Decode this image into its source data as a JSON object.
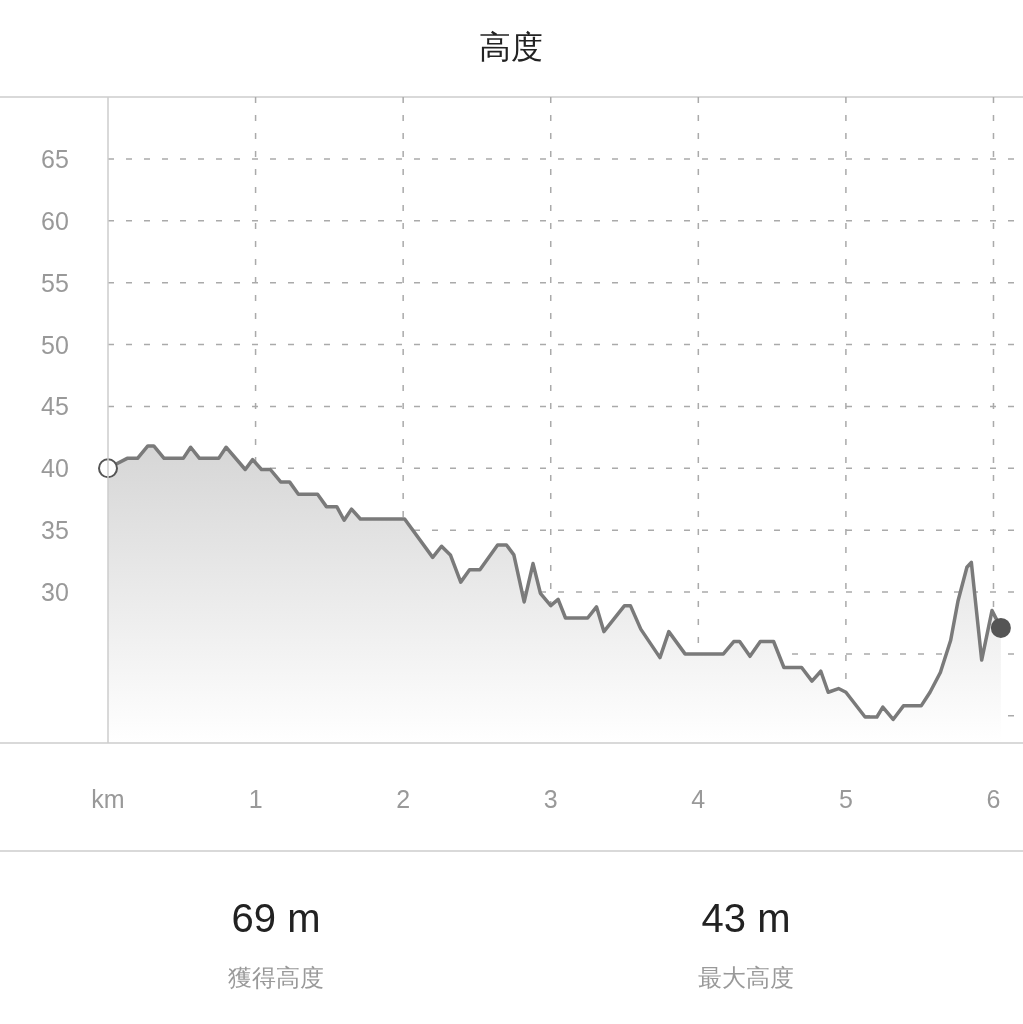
{
  "chart_data": {
    "type": "area",
    "title": "高度",
    "color": "#7a7a7a",
    "x": [
      0,
      0.13,
      0.2,
      0.27,
      0.31,
      0.38,
      0.51,
      0.56,
      0.62,
      0.75,
      0.8,
      0.93,
      0.98,
      1.04,
      1.1,
      1.17,
      1.23,
      1.29,
      1.42,
      1.48,
      1.55,
      1.6,
      1.65,
      1.71,
      2.01,
      2.2,
      2.26,
      2.32,
      2.39,
      2.45,
      2.52,
      2.64,
      2.7,
      2.75,
      2.82,
      2.88,
      2.93,
      3.0,
      3.05,
      3.1,
      3.25,
      3.31,
      3.36,
      3.5,
      3.54,
      3.61,
      3.74,
      3.8,
      3.91,
      4.17,
      4.24,
      4.28,
      4.35,
      4.42,
      4.51,
      4.58,
      4.7,
      4.77,
      4.83,
      4.88,
      4.95,
      5.0,
      5.13,
      5.21,
      5.25,
      5.32,
      5.39,
      5.51,
      5.57,
      5.64,
      5.71,
      5.76,
      5.82,
      5.85,
      5.92,
      5.99,
      6.05
    ],
    "values": [
      40,
      40.8,
      40.8,
      41.8,
      41.8,
      40.8,
      40.8,
      41.7,
      40.8,
      40.8,
      41.7,
      39.9,
      40.7,
      39.9,
      39.9,
      38.9,
      38.9,
      37.9,
      37.9,
      36.9,
      36.9,
      35.8,
      36.7,
      35.9,
      35.9,
      32.8,
      33.7,
      33,
      30.8,
      31.8,
      31.8,
      33.8,
      33.8,
      33,
      29.2,
      32.3,
      29.9,
      28.9,
      29.4,
      27.9,
      27.9,
      28.8,
      26.8,
      28.9,
      28.9,
      27,
      24.7,
      26.8,
      25,
      25,
      26,
      26,
      24.8,
      26,
      26,
      23.9,
      23.9,
      22.8,
      23.6,
      21.9,
      22.2,
      21.9,
      19.9,
      19.9,
      20.7,
      19.7,
      20.8,
      20.8,
      21.9,
      23.5,
      26.1,
      29.3,
      32,
      32.4,
      24.5,
      28.5,
      27.1
    ],
    "xlim": [
      0,
      6.2
    ],
    "ylim": [
      17.8,
      70
    ],
    "xticks": [
      {
        "value": 0,
        "label": "km"
      },
      1,
      2,
      3,
      4,
      5,
      6
    ],
    "yticks": [
      {
        "value": 20,
        "label": null
      },
      {
        "value": 25,
        "label": null
      },
      30,
      35,
      40,
      45,
      50,
      55,
      60,
      65
    ],
    "grid": true,
    "annotations": [
      "69 m",
      "獲得高度",
      "43 m",
      "最大高度"
    ]
  }
}
